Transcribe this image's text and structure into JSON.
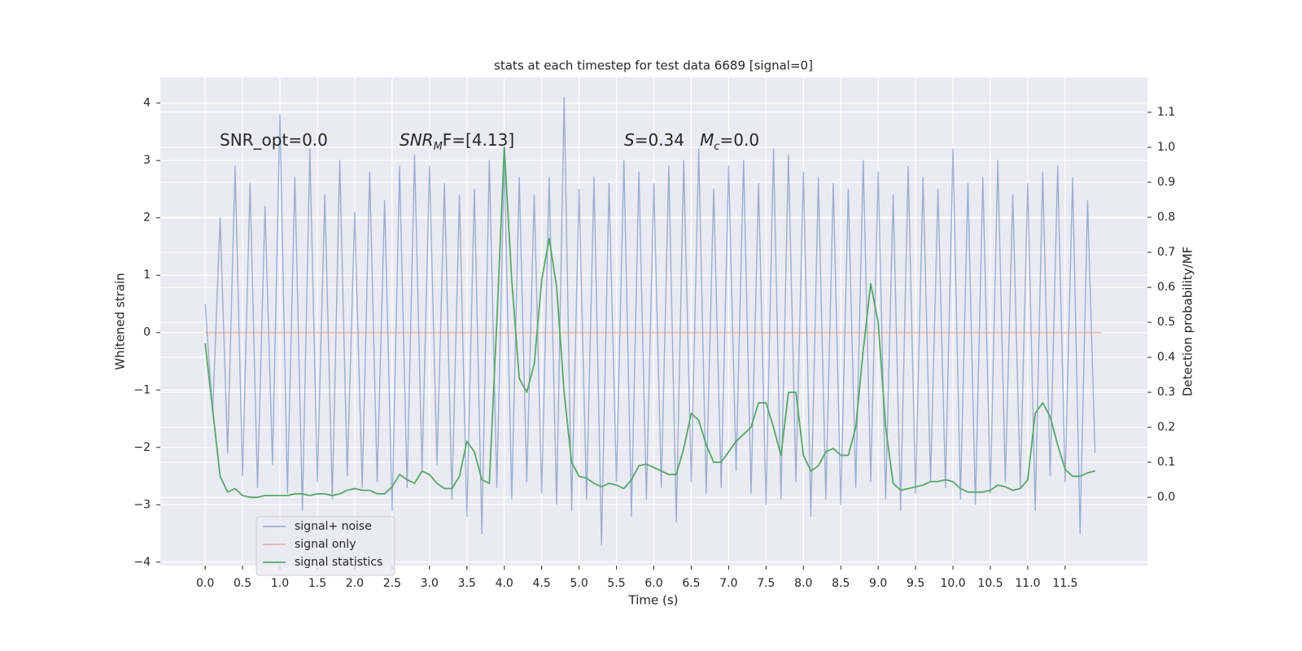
{
  "chart_data": {
    "type": "line",
    "title": "stats at each timestep for test data 6689 [signal=0]",
    "xlabel": "Time (s)",
    "ylabel": "Whitened strain",
    "y2label": "Detection probability/MF",
    "annotations": [
      [
        {
          "text": "SNR_opt=0.0"
        }
      ],
      [
        {
          "text": "SNR",
          "italic": true
        },
        {
          "text": "M",
          "italic": true,
          "sub": true
        },
        {
          "text": "F=[4.13]"
        }
      ],
      [
        {
          "text": "S",
          "italic": true
        },
        {
          "text": "=0.34   "
        },
        {
          "text": "M",
          "italic": true
        },
        {
          "text": "c",
          "italic": true,
          "sub": true
        },
        {
          "text": "=0.0"
        }
      ]
    ],
    "x": [
      0.0,
      0.1,
      0.2,
      0.3,
      0.4,
      0.5,
      0.6,
      0.7,
      0.8,
      0.9,
      1.0,
      1.1,
      1.2,
      1.3,
      1.4,
      1.5,
      1.6,
      1.7,
      1.8,
      1.9,
      2.0,
      2.1,
      2.2,
      2.3,
      2.4,
      2.5,
      2.6,
      2.7,
      2.8,
      2.9,
      3.0,
      3.1,
      3.2,
      3.3,
      3.4,
      3.5,
      3.6,
      3.7,
      3.8,
      3.9,
      4.0,
      4.1,
      4.2,
      4.3,
      4.4,
      4.5,
      4.6,
      4.7,
      4.8,
      4.9,
      5.0,
      5.1,
      5.2,
      5.3,
      5.4,
      5.5,
      5.6,
      5.7,
      5.8,
      5.9,
      6.0,
      6.1,
      6.2,
      6.3,
      6.4,
      6.5,
      6.6,
      6.7,
      6.8,
      6.9,
      7.0,
      7.1,
      7.2,
      7.3,
      7.4,
      7.5,
      7.6,
      7.7,
      7.8,
      7.9,
      8.0,
      8.1,
      8.2,
      8.3,
      8.4,
      8.5,
      8.6,
      8.7,
      8.8,
      8.9,
      9.0,
      9.1,
      9.2,
      9.3,
      9.4,
      9.5,
      9.6,
      9.7,
      9.8,
      9.9,
      10.0,
      10.1,
      10.2,
      10.3,
      10.4,
      10.5,
      10.6,
      10.7,
      10.8,
      10.9,
      11.0,
      11.1,
      11.2,
      11.3,
      11.4,
      11.5,
      11.6,
      11.7,
      11.8,
      11.9
    ],
    "series": [
      {
        "name": "signal+ noise",
        "color": "#4c72b0",
        "alpha": 0.5,
        "axis": "y",
        "values": [
          0.5,
          -1.4,
          2.0,
          -2.1,
          2.9,
          -2.5,
          2.6,
          -2.7,
          2.2,
          -2.3,
          3.8,
          -2.8,
          2.7,
          -3.1,
          3.2,
          -2.6,
          2.4,
          -2.9,
          3.0,
          -2.5,
          2.1,
          -2.7,
          2.8,
          -2.6,
          2.3,
          -3.1,
          2.9,
          -2.7,
          3.1,
          -2.4,
          2.9,
          -2.3,
          2.6,
          -2.9,
          2.4,
          -3.2,
          2.5,
          -3.5,
          3.0,
          -2.7,
          3.0,
          -2.9,
          2.7,
          -2.6,
          2.4,
          -2.8,
          2.7,
          -3.0,
          4.1,
          -3.1,
          2.5,
          -2.9,
          2.7,
          -3.7,
          2.6,
          -2.6,
          3.0,
          -3.2,
          2.8,
          -2.9,
          2.6,
          -2.7,
          2.9,
          -3.3,
          3.0,
          -2.6,
          3.2,
          -2.8,
          2.5,
          -2.7,
          2.9,
          -2.4,
          3.0,
          -2.8,
          2.6,
          -3.0,
          3.2,
          -2.9,
          3.1,
          -2.6,
          2.8,
          -3.2,
          2.7,
          -2.9,
          2.6,
          -3.0,
          2.5,
          -2.7,
          3.0,
          -2.6,
          2.8,
          -2.9,
          2.4,
          -3.1,
          2.9,
          -2.8,
          2.7,
          -2.6,
          2.5,
          -2.7,
          3.2,
          -2.9,
          2.6,
          -3.0,
          2.7,
          -2.8,
          3.0,
          -2.6,
          2.4,
          -2.7,
          2.6,
          -3.1,
          2.8,
          -2.5,
          2.9,
          -2.6,
          2.7,
          -3.5,
          2.3,
          -2.1
        ]
      },
      {
        "name": "signal only",
        "color": "#dd8452",
        "alpha": 0.5,
        "axis": "y",
        "x": [
          0,
          11.99
        ],
        "values": [
          0,
          0
        ]
      },
      {
        "name": "signal statistics",
        "color": "#55a868",
        "alpha": 1,
        "axis": "y2",
        "values": [
          0.44,
          0.25,
          0.06,
          0.015,
          0.025,
          0.005,
          0.0,
          0.0,
          0.005,
          0.005,
          0.005,
          0.005,
          0.01,
          0.01,
          0.005,
          0.01,
          0.01,
          0.005,
          0.01,
          0.02,
          0.025,
          0.02,
          0.02,
          0.01,
          0.01,
          0.03,
          0.065,
          0.05,
          0.04,
          0.075,
          0.065,
          0.04,
          0.025,
          0.025,
          0.06,
          0.16,
          0.13,
          0.05,
          0.04,
          0.5,
          1.0,
          0.62,
          0.34,
          0.3,
          0.38,
          0.62,
          0.74,
          0.6,
          0.3,
          0.1,
          0.06,
          0.055,
          0.04,
          0.03,
          0.04,
          0.035,
          0.025,
          0.05,
          0.09,
          0.095,
          0.085,
          0.075,
          0.065,
          0.065,
          0.14,
          0.24,
          0.22,
          0.15,
          0.1,
          0.1,
          0.13,
          0.16,
          0.18,
          0.2,
          0.27,
          0.27,
          0.2,
          0.12,
          0.3,
          0.3,
          0.12,
          0.075,
          0.09,
          0.13,
          0.14,
          0.12,
          0.12,
          0.2,
          0.42,
          0.61,
          0.5,
          0.2,
          0.04,
          0.02,
          0.025,
          0.03,
          0.035,
          0.045,
          0.045,
          0.05,
          0.045,
          0.025,
          0.015,
          0.015,
          0.015,
          0.02,
          0.035,
          0.03,
          0.02,
          0.025,
          0.05,
          0.24,
          0.27,
          0.23,
          0.15,
          0.08,
          0.06,
          0.06,
          0.07,
          0.075
        ]
      }
    ],
    "xlim": [
      -0.6,
      12.6
    ],
    "ylim": [
      -4.06,
      4.45
    ],
    "y2lim": [
      -0.195,
      1.2
    ],
    "xticks": [
      {
        "value": 0,
        "label": "0.0"
      },
      {
        "value": 0.5,
        "label": "0.5"
      },
      {
        "value": 1,
        "label": "1.0"
      },
      {
        "value": 1.5,
        "label": "1.5"
      },
      {
        "value": 2,
        "label": "2.0"
      },
      {
        "value": 2.5,
        "label": "2.5"
      },
      {
        "value": 3,
        "label": "3.0"
      },
      {
        "value": 3.5,
        "label": "3.5"
      },
      {
        "value": 4,
        "label": "4.0"
      },
      {
        "value": 4.5,
        "label": "4.5"
      },
      {
        "value": 5,
        "label": "5.0"
      },
      {
        "value": 5.5,
        "label": "5.5"
      },
      {
        "value": 6,
        "label": "6.0"
      },
      {
        "value": 6.5,
        "label": "6.5"
      },
      {
        "value": 7,
        "label": "7.0"
      },
      {
        "value": 7.5,
        "label": "7.5"
      },
      {
        "value": 8,
        "label": "8.0"
      },
      {
        "value": 8.5,
        "label": "8.5"
      },
      {
        "value": 9,
        "label": "9.0"
      },
      {
        "value": 9.5,
        "label": "9.5"
      },
      {
        "value": 10,
        "label": "10.0"
      },
      {
        "value": 10.5,
        "label": "10.5"
      },
      {
        "value": 11,
        "label": "11.0"
      },
      {
        "value": 11.5,
        "label": "11.5"
      }
    ],
    "yticks": [
      {
        "value": -4,
        "label": "−4"
      },
      {
        "value": -3,
        "label": "−3"
      },
      {
        "value": -2,
        "label": "−2"
      },
      {
        "value": -1,
        "label": "−1"
      },
      0,
      1,
      2,
      3,
      4
    ],
    "y2ticks": [
      {
        "value": 0,
        "label": "0.0"
      },
      {
        "value": 0.1,
        "label": "0.1"
      },
      {
        "value": 0.2,
        "label": "0.2"
      },
      {
        "value": 0.3,
        "label": "0.3"
      },
      {
        "value": 0.4,
        "label": "0.4"
      },
      {
        "value": 0.5,
        "label": "0.5"
      },
      {
        "value": 0.6,
        "label": "0.6"
      },
      {
        "value": 0.7,
        "label": "0.7"
      },
      {
        "value": 0.8,
        "label": "0.8"
      },
      {
        "value": 0.9,
        "label": "0.9"
      },
      {
        "value": 1.0,
        "label": "1.0"
      },
      {
        "value": 1.1,
        "label": "1.1"
      }
    ],
    "grid": true,
    "legend": "lower left"
  }
}
